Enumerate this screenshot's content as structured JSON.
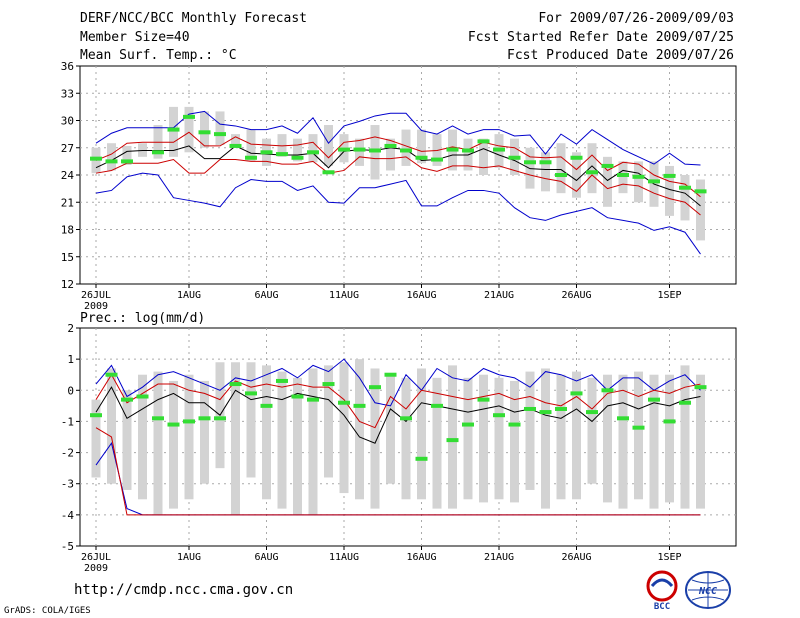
{
  "header": {
    "title": "DERF/NCC/BCC Monthly Forecast",
    "member_size": "Member Size=40",
    "variable": "Mean Surf. Temp.: °C",
    "period": "For 2009/07/26-2009/09/03",
    "started": "Fcst Started Refer Date 2009/07/25",
    "produced": "Fcst Produced Date 2009/07/26"
  },
  "footer": {
    "url": "http://cmdp.ncc.cma.gov.cn",
    "credit": "GrADS: COLA/IGES",
    "logo_bcc": "BCC",
    "logo_ncc": "NCC"
  },
  "colors": {
    "box": "#d3d3d3",
    "median": "#000000",
    "quartile": "#cc0000",
    "extreme": "#0000cc",
    "mean": "#33dd33",
    "grid": "#aaaaaa"
  },
  "chart_data": [
    {
      "type": "box",
      "title": "Mean Surf. Temp.: °C",
      "ylim": [
        12,
        36
      ],
      "yticks": [
        12,
        15,
        18,
        21,
        24,
        27,
        30,
        33,
        36
      ],
      "xlabels": [
        "26JUL",
        "1AUG",
        "6AUG",
        "11AUG",
        "16AUG",
        "21AUG",
        "26AUG",
        "1SEP"
      ],
      "xlabel_days": [
        1,
        7,
        12,
        17,
        22,
        27,
        32,
        38
      ],
      "year_label": "2009",
      "days": 40,
      "box_low": [
        24.2,
        24.5,
        25.1,
        26.0,
        25.8,
        26.0,
        26.5,
        27.0,
        27.3,
        27.0,
        25.5,
        25.0,
        26.0,
        25.5,
        25.4,
        25.0,
        25.4,
        25.0,
        23.5,
        24.5,
        25.0,
        25.3,
        25.0,
        24.5,
        24.5,
        24.0,
        24.8,
        24.0,
        22.5,
        22.2,
        22.0,
        21.5,
        22.0,
        20.5,
        22.0,
        21.0,
        20.5,
        19.5,
        19.0,
        16.8
      ],
      "box_high": [
        27.0,
        27.5,
        27.2,
        27.5,
        29.5,
        31.5,
        31.5,
        31.0,
        31.0,
        28.5,
        29.0,
        28.0,
        28.5,
        28.0,
        28.5,
        29.5,
        28.5,
        28.0,
        29.5,
        28.0,
        29.0,
        29.0,
        28.5,
        29.0,
        28.0,
        28.0,
        28.5,
        28.0,
        27.0,
        26.5,
        27.5,
        26.5,
        27.5,
        26.0,
        25.5,
        25.5,
        25.5,
        25.0,
        24.0,
        23.5
      ],
      "q_low": [
        24.2,
        24.5,
        25.3,
        25.3,
        25.3,
        25.7,
        24.2,
        24.2,
        25.7,
        25.7,
        25.5,
        25.5,
        25.2,
        25.2,
        25.5,
        24.2,
        24.5,
        26.0,
        25.8,
        25.8,
        26.0,
        24.8,
        24.4,
        25.0,
        25.0,
        24.8,
        25.0,
        24.5,
        24.0,
        23.6,
        23.3,
        22.2,
        24.0,
        22.5,
        23.0,
        22.8,
        22.0,
        21.4,
        21.0,
        19.6
      ],
      "median": [
        24.8,
        25.6,
        26.6,
        26.7,
        26.7,
        26.7,
        27.2,
        25.8,
        25.8,
        27.2,
        26.4,
        26.3,
        26.2,
        26.2,
        26.4,
        24.8,
        26.6,
        26.8,
        26.7,
        27.0,
        26.8,
        25.6,
        25.7,
        26.2,
        26.2,
        26.9,
        26.2,
        25.6,
        24.7,
        24.6,
        24.6,
        23.4,
        25.0,
        23.4,
        24.5,
        24.2,
        23.0,
        22.4,
        22.0,
        20.6
      ],
      "q_high": [
        25.6,
        26.3,
        27.5,
        27.6,
        27.6,
        27.6,
        28.7,
        27.2,
        27.2,
        28.2,
        27.4,
        27.3,
        27.2,
        27.3,
        27.6,
        25.9,
        27.6,
        27.8,
        28.2,
        27.8,
        27.2,
        26.6,
        26.7,
        27.1,
        26.8,
        27.6,
        27.2,
        27.0,
        26.0,
        25.9,
        26.0,
        24.6,
        26.2,
        24.5,
        25.4,
        25.2,
        24.0,
        23.3,
        23.0,
        21.6
      ],
      "ext_min": [
        22.0,
        22.3,
        23.8,
        24.2,
        24.0,
        21.5,
        21.2,
        20.9,
        20.5,
        22.6,
        23.5,
        23.3,
        23.3,
        22.3,
        22.8,
        21.0,
        20.9,
        22.6,
        22.6,
        23.0,
        23.4,
        20.6,
        20.6,
        21.5,
        22.3,
        22.3,
        22.0,
        20.4,
        19.3,
        19.0,
        19.6,
        20.0,
        20.4,
        19.3,
        19.0,
        18.7,
        17.9,
        18.3,
        17.7,
        15.3
      ],
      "ext_max": [
        27.5,
        28.6,
        29.2,
        29.2,
        29.2,
        29.2,
        30.7,
        31.0,
        29.6,
        29.4,
        29.0,
        29.0,
        29.4,
        28.6,
        30.3,
        27.5,
        29.4,
        29.9,
        30.5,
        30.8,
        30.8,
        28.9,
        28.5,
        29.4,
        28.5,
        29.0,
        29.0,
        28.3,
        28.4,
        26.3,
        28.5,
        27.4,
        29.0,
        27.9,
        26.8,
        26.0,
        25.2,
        26.4,
        25.2,
        25.1
      ],
      "mean": [
        25.8,
        25.5,
        25.5,
        null,
        26.5,
        29.0,
        30.4,
        28.7,
        28.5,
        27.2,
        25.9,
        26.5,
        26.3,
        25.9,
        26.5,
        24.3,
        26.8,
        26.8,
        26.7,
        27.2,
        26.7,
        25.9,
        25.7,
        26.8,
        26.7,
        27.7,
        26.8,
        25.9,
        25.4,
        25.4,
        24.0,
        25.9,
        24.3,
        25.0,
        24.0,
        23.8,
        23.3,
        23.9,
        22.6,
        22.2
      ]
    },
    {
      "type": "box",
      "title": "Prec.: log(mm/d)",
      "ylim": [
        -5,
        2
      ],
      "yticks": [
        -5,
        -4,
        -3,
        -2,
        -1,
        0,
        1,
        2
      ],
      "xlabels": [
        "26JUL",
        "1AUG",
        "6AUG",
        "11AUG",
        "16AUG",
        "21AUG",
        "26AUG",
        "1SEP"
      ],
      "xlabel_days": [
        1,
        7,
        12,
        17,
        22,
        27,
        32,
        38
      ],
      "year_label": "2009",
      "days": 40,
      "box_low": [
        -2.8,
        -3.0,
        -3.2,
        -3.5,
        -4.0,
        -3.8,
        -3.5,
        -3.0,
        -2.5,
        -4.0,
        -2.8,
        -3.5,
        -3.8,
        -4.0,
        -4.0,
        -2.8,
        -3.3,
        -3.5,
        -3.8,
        -3.0,
        -3.5,
        -3.5,
        -3.8,
        -3.8,
        -3.5,
        -3.6,
        -3.5,
        -3.6,
        -3.2,
        -3.8,
        -3.5,
        -3.5,
        -3.0,
        -3.6,
        -3.8,
        -3.5,
        -3.8,
        -3.6,
        -3.8,
        -3.8
      ],
      "box_high": [
        -0.3,
        0.7,
        0.0,
        0.5,
        0.6,
        0.3,
        0.5,
        0.3,
        0.9,
        0.9,
        0.9,
        0.8,
        0.6,
        0.4,
        0.7,
        0.8,
        0.9,
        1.0,
        0.7,
        0.5,
        0.4,
        0.7,
        0.4,
        0.8,
        0.4,
        0.5,
        0.4,
        0.3,
        0.6,
        0.7,
        0.5,
        0.6,
        0.4,
        0.5,
        0.5,
        0.6,
        0.5,
        0.5,
        0.8,
        0.5
      ],
      "q_low": [
        -1.2,
        -1.5,
        -4.0,
        -4.0,
        -4.0,
        -4.0,
        -4.0,
        -4.0,
        -4.0,
        -4.0,
        -4.0,
        -4.0,
        -4.0,
        -4.0,
        -4.0,
        -4.0,
        -4.0,
        -4.0,
        -4.0,
        -4.0,
        -4.0,
        -4.0,
        -4.0,
        -4.0,
        -4.0,
        -4.0,
        -4.0,
        -4.0,
        -4.0,
        -4.0,
        -4.0,
        -4.0,
        -4.0,
        -4.0,
        -4.0,
        -4.0,
        -4.0,
        -4.0,
        -4.0,
        -4.0
      ],
      "median": [
        -0.7,
        0.1,
        -0.9,
        -0.6,
        -0.3,
        -0.1,
        -0.4,
        -0.4,
        -0.8,
        0.0,
        -0.3,
        -0.2,
        -0.3,
        -0.1,
        -0.2,
        -0.3,
        -0.8,
        -1.5,
        -1.7,
        -0.6,
        -1.0,
        -0.4,
        -0.5,
        -0.6,
        -0.7,
        -0.6,
        -0.5,
        -0.7,
        -0.6,
        -0.8,
        -0.9,
        -0.6,
        -1.0,
        -0.5,
        -0.4,
        -0.6,
        -0.4,
        -0.5,
        -0.3,
        -0.2
      ],
      "q_high": [
        -0.3,
        0.5,
        -0.4,
        -0.1,
        0.2,
        0.2,
        0.0,
        -0.1,
        -0.3,
        0.3,
        0.1,
        0.2,
        0.1,
        0.2,
        0.1,
        0.1,
        -0.3,
        -1.0,
        -1.2,
        -0.2,
        -0.6,
        0.0,
        -0.1,
        -0.2,
        -0.3,
        -0.2,
        -0.1,
        -0.3,
        -0.2,
        -0.4,
        -0.5,
        -0.2,
        -0.6,
        -0.1,
        0.0,
        -0.2,
        0.0,
        -0.1,
        0.1,
        0.2
      ],
      "ext_min": [
        -2.4,
        -1.7,
        -3.8,
        -4.0,
        -4.0,
        -4.0,
        -4.0,
        -4.0,
        -4.0,
        -4.0,
        -4.0,
        -4.0,
        -4.0,
        -4.0,
        -4.0,
        -4.0,
        -4.0,
        -4.0,
        -4.0,
        -4.0,
        -4.0,
        -4.0,
        -4.0,
        -4.0,
        -4.0,
        -4.0,
        -4.0,
        -4.0,
        -4.0,
        -4.0,
        -4.0,
        -4.0,
        -4.0,
        -4.0,
        -4.0,
        -4.0,
        -4.0,
        -4.0,
        -4.0,
        -4.0
      ],
      "ext_max": [
        0.2,
        0.8,
        -0.2,
        0.1,
        0.5,
        0.6,
        0.4,
        0.2,
        0.0,
        0.4,
        0.3,
        0.5,
        0.7,
        0.4,
        0.8,
        0.6,
        1.0,
        0.4,
        -0.4,
        -0.5,
        0.5,
        0.0,
        0.7,
        0.4,
        0.3,
        0.7,
        0.5,
        0.4,
        0.1,
        0.6,
        0.5,
        0.3,
        0.5,
        0.0,
        0.4,
        0.4,
        0.0,
        0.3,
        0.5,
        0.0
      ],
      "mean": [
        -0.8,
        0.5,
        -0.3,
        -0.2,
        -0.9,
        -1.1,
        -1.0,
        -0.9,
        -0.9,
        0.2,
        -0.1,
        -0.5,
        0.3,
        -0.2,
        -0.3,
        0.2,
        -0.4,
        -0.5,
        0.1,
        0.5,
        -0.9,
        -2.2,
        -0.5,
        -1.6,
        -1.1,
        -0.3,
        -0.8,
        -1.1,
        -0.6,
        -0.7,
        -0.6,
        -0.1,
        -0.7,
        0.0,
        -0.9,
        -1.2,
        -0.3,
        -1.0,
        -0.4,
        0.1
      ]
    }
  ]
}
